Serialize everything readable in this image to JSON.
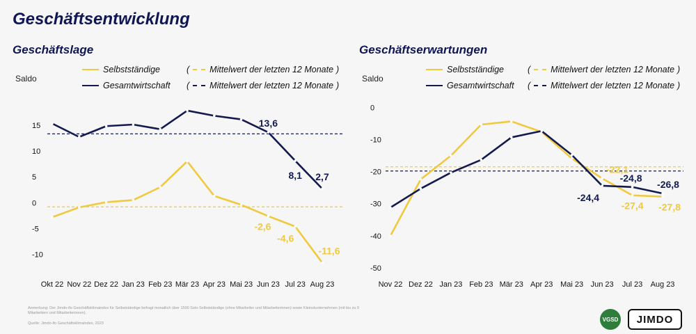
{
  "title": "Geschäftsentwicklung",
  "colors": {
    "yellow": "#f0c93f",
    "navy": "#121a4f"
  },
  "legend_labels": {
    "self": "Selbstständige",
    "economy": "Gesamtwirtschaft",
    "avg": "Mittelwert der letzten 12 Monate",
    "paren_open": "(",
    "paren_close": ")"
  },
  "note": "Anmerkung: Der Jimdo-ifo Geschäftsklimaindex für Selbstständige befragt monatlich über 1500 Solo-Selbstständige (ohne Mitarbeiter und Mitarbeiterinnen) sowie Kleinstunternehmen (mit bis zu 9 Mitarbeitern und Mitarbeiterinnen).",
  "source": "Quelle: Jimdo-ifo Geschäftsklimaindex, 2023",
  "logos": {
    "vgsd": "VGSD",
    "jimdo": "JIMDO"
  },
  "chart_data": [
    {
      "type": "line",
      "title": "Geschäftslage",
      "ylabel": "Saldo",
      "xlabel": "",
      "categories": [
        "Okt 22",
        "Nov 22",
        "Dez 22",
        "Jan 23",
        "Feb 23",
        "Mär 23",
        "Apr 23",
        "Mai 23",
        "Jun 23",
        "Jul 23",
        "Aug 23"
      ],
      "ylim": [
        -13,
        19
      ],
      "yticks": [
        15,
        10,
        5,
        0,
        -5,
        -10
      ],
      "ytick_labels": [
        "15",
        "10",
        "5",
        "0",
        "-5",
        "-10"
      ],
      "grid": false,
      "series": [
        {
          "name": "Gesamtwirtschaft",
          "color": "#121a4f",
          "values": [
            15.3,
            12.7,
            14.8,
            15.1,
            14.2,
            17.8,
            16.8,
            16.1,
            13.6,
            8.1,
            2.7
          ]
        },
        {
          "name": "Selbstständige",
          "color": "#f0c93f",
          "values": [
            -2.8,
            -0.9,
            0.1,
            0.5,
            3.0,
            8.0,
            1.3,
            -0.4,
            -2.6,
            -4.6,
            -11.6
          ]
        }
      ],
      "mean_lines": [
        {
          "series": "Gesamtwirtschaft",
          "value": 13.3
        },
        {
          "series": "Selbstständige",
          "value": -0.8
        }
      ],
      "data_labels": [
        {
          "series": "Gesamtwirtschaft",
          "index": 8,
          "text": "13,6"
        },
        {
          "series": "Gesamtwirtschaft",
          "index": 9,
          "text": "8,1"
        },
        {
          "series": "Gesamtwirtschaft",
          "index": 10,
          "text": "2,7"
        },
        {
          "series": "Selbstständige",
          "index": 8,
          "text": "-2,6"
        },
        {
          "series": "Selbstständige",
          "index": 9,
          "text": "-4,6"
        },
        {
          "series": "Selbstständige",
          "index": 10,
          "text": "-11,6"
        }
      ]
    },
    {
      "type": "line",
      "title": "Geschäftserwartungen",
      "ylabel": "Saldo",
      "xlabel": "",
      "categories": [
        "Nov 22",
        "Dez 22",
        "Jan 23",
        "Feb 23",
        "Mär 23",
        "Apr 23",
        "Mai 23",
        "Jun 23",
        "Jul 23",
        "Aug 23"
      ],
      "ylim": [
        -52,
        1
      ],
      "yticks": [
        0,
        -10,
        -20,
        -30,
        -40,
        -50
      ],
      "ytick_labels": [
        "0",
        "-10",
        "-20",
        "-30",
        "-40",
        "-50"
      ],
      "grid": false,
      "series": [
        {
          "name": "Gesamtwirtschaft",
          "color": "#121a4f",
          "values": [
            -31.2,
            -25.3,
            -20.3,
            -16.3,
            -9.3,
            -7.3,
            -14.8,
            -24.4,
            -24.8,
            -26.8
          ]
        },
        {
          "name": "Selbstständige",
          "color": "#f0c93f",
          "values": [
            -40.0,
            -22.4,
            -15.0,
            -5.3,
            -4.3,
            -7.6,
            -15.9,
            -22.1,
            -27.4,
            -27.8
          ]
        }
      ],
      "mean_lines": [
        {
          "series": "Gesamtwirtschaft",
          "value": -19.8
        },
        {
          "series": "Selbstständige",
          "value": -18.5
        }
      ],
      "data_labels": [
        {
          "series": "Selbstständige",
          "index": 7,
          "text": "-22,1"
        },
        {
          "series": "Selbstständige",
          "index": 8,
          "text": "-27,4"
        },
        {
          "series": "Selbstständige",
          "index": 9,
          "text": "-27,8"
        },
        {
          "series": "Gesamtwirtschaft",
          "index": 7,
          "text": "-24,4"
        },
        {
          "series": "Gesamtwirtschaft",
          "index": 8,
          "text": "-24,8"
        },
        {
          "series": "Gesamtwirtschaft",
          "index": 9,
          "text": "-26,8"
        }
      ]
    }
  ]
}
